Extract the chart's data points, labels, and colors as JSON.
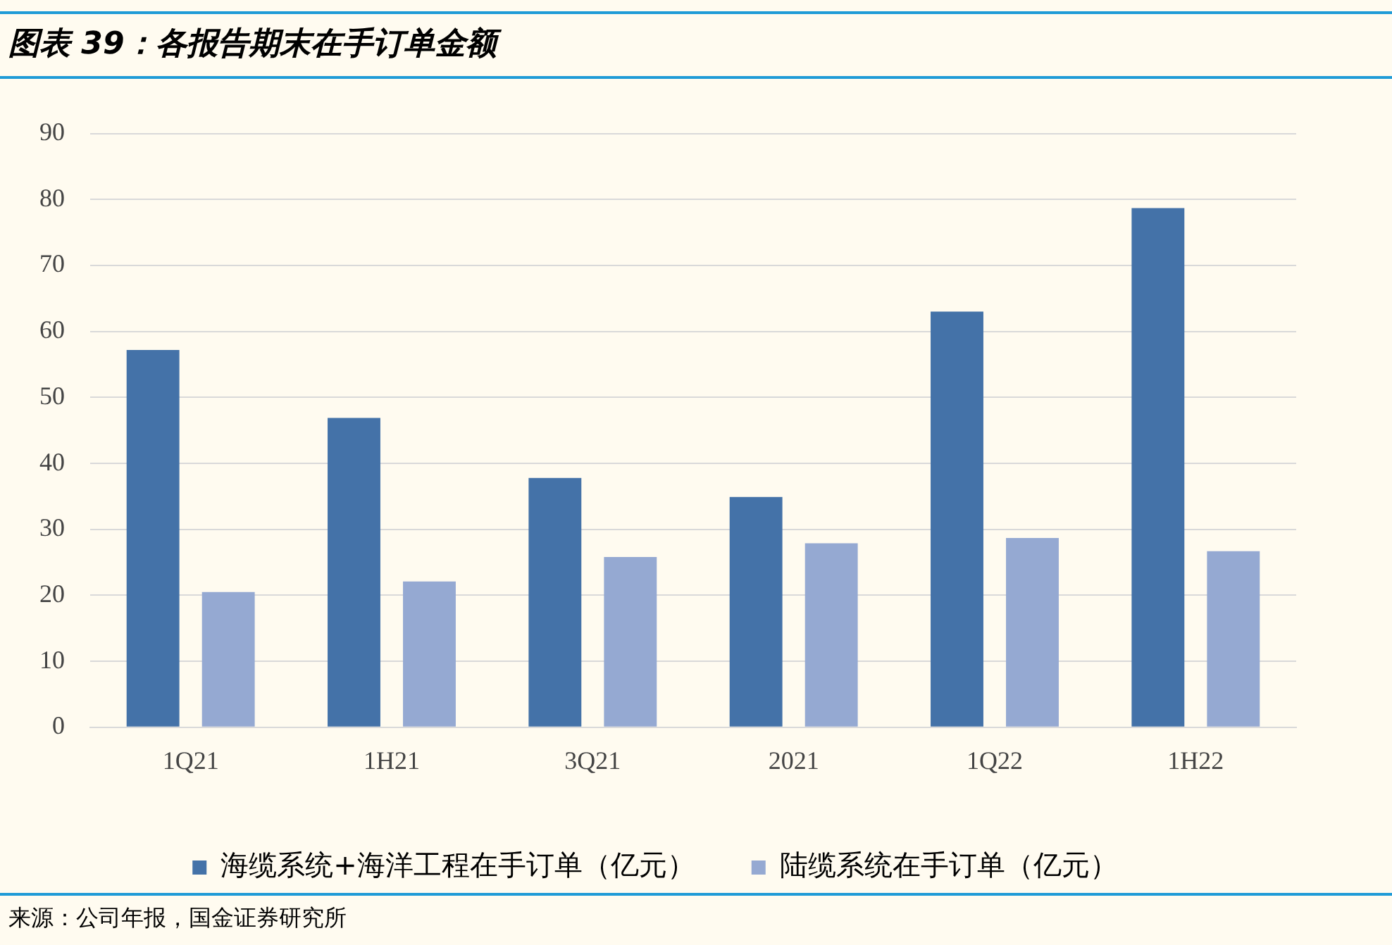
{
  "chart_data": {
    "type": "bar",
    "title": "图表 39：各报告期末在手订单金额",
    "categories": [
      "1Q21",
      "1H21",
      "3Q21",
      "2021",
      "1Q22",
      "1H22"
    ],
    "series": [
      {
        "name": "海缆系统+海洋工程在手订单（亿元）",
        "color": "#4472a8",
        "values": [
          57.2,
          46.9,
          37.8,
          34.9,
          63.0,
          78.7
        ]
      },
      {
        "name": "陆缆系统在手订单（亿元）",
        "color": "#95a9d2",
        "values": [
          20.5,
          22.1,
          25.8,
          27.9,
          28.7,
          26.7
        ]
      }
    ],
    "ylim": [
      0,
      90
    ],
    "yticks": [
      0,
      10,
      20,
      30,
      40,
      50,
      60,
      70,
      80,
      90
    ],
    "grid": "y",
    "legend": "bottom",
    "annotations": [
      "来源：公司年报，国金证券研究所"
    ]
  }
}
